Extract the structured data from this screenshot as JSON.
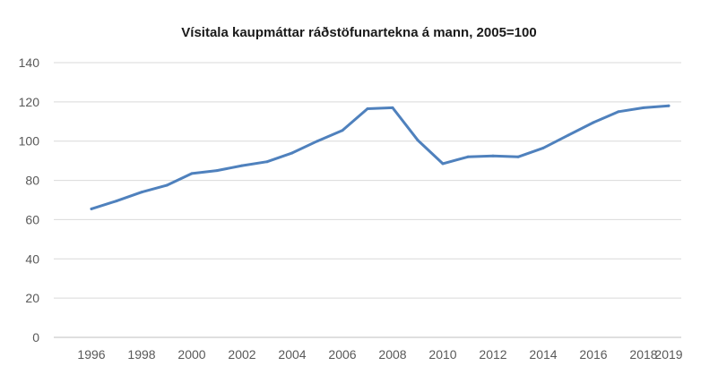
{
  "chart_data": {
    "type": "line",
    "title": "Vísitala kaupmáttar ráðstöfunartekna á mann, 2005=100",
    "xlabel": "",
    "ylabel": "",
    "x": [
      1996,
      1997,
      1998,
      1999,
      2000,
      2001,
      2002,
      2003,
      2004,
      2005,
      2006,
      2007,
      2008,
      2009,
      2010,
      2011,
      2012,
      2013,
      2014,
      2015,
      2016,
      2017,
      2018,
      2019
    ],
    "series": [
      {
        "name": "",
        "color": "#4f81bd",
        "values": [
          65.5,
          69.5,
          74,
          77.5,
          83.5,
          85,
          87.5,
          89.5,
          94,
          100,
          105.5,
          116.5,
          117,
          100.5,
          88.5,
          92,
          92.5,
          92,
          96.5,
          103,
          109.5,
          115,
          117,
          118
        ]
      }
    ],
    "xlim": [
      1996,
      2019
    ],
    "ylim": [
      0,
      140
    ],
    "xticks": [
      "1996",
      "1998",
      "2000",
      "2002",
      "2004",
      "2006",
      "2008",
      "2010",
      "2012",
      "2014",
      "2016",
      "2018",
      "2019"
    ],
    "yticks": [
      "0",
      "20",
      "40",
      "60",
      "80",
      "100",
      "120",
      "140"
    ],
    "grid": "horizontal",
    "legend": "none"
  }
}
